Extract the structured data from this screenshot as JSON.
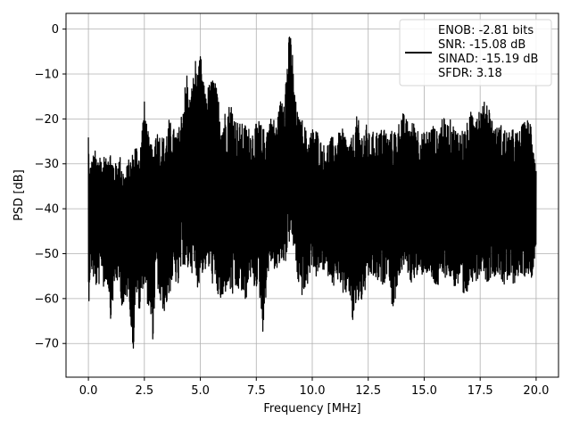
{
  "chart_data": {
    "type": "line",
    "title": "",
    "xlabel": "Frequency [MHz]",
    "ylabel": "PSD [dB]",
    "xlim": [
      -1.0,
      21.0
    ],
    "ylim": [
      -77.5,
      3.5
    ],
    "xticks": [
      0.0,
      2.5,
      5.0,
      7.5,
      10.0,
      12.5,
      15.0,
      17.5,
      20.0
    ],
    "xtick_labels": [
      "0.0",
      "2.5",
      "5.0",
      "7.5",
      "10.0",
      "12.5",
      "15.0",
      "17.5",
      "20.0"
    ],
    "yticks": [
      0,
      -10,
      -20,
      -30,
      -40,
      -50,
      -60,
      -70
    ],
    "ytick_labels": [
      "0",
      "−10",
      "−20",
      "−30",
      "−40",
      "−50",
      "−60",
      "−70"
    ],
    "grid": true,
    "legend_position": "top-right",
    "series_color": "#000000",
    "legend_entries": [
      "ENOB: -2.81 bits",
      "SNR: -15.08 dB",
      "SINAD: -15.19 dB",
      "SFDR: 3.18"
    ],
    "series": [
      {
        "name": "ENOB: -2.81 bits",
        "x": [
          0.0,
          0.05,
          0.1,
          0.2,
          0.3,
          0.4,
          0.5,
          0.6,
          0.7,
          0.8,
          0.9,
          1.0,
          1.2,
          1.4,
          1.5,
          1.6,
          1.8,
          2.0,
          2.1,
          2.3,
          2.4,
          2.5,
          2.7,
          2.9,
          3.0,
          3.2,
          3.4,
          3.6,
          3.8,
          4.0,
          4.2,
          4.4,
          4.5,
          4.6,
          4.8,
          4.9,
          5.0,
          5.2,
          5.4,
          5.6,
          5.8,
          6.0,
          6.2,
          6.4,
          6.6,
          6.8,
          7.0,
          7.2,
          7.4,
          7.6,
          7.8,
          8.0,
          8.2,
          8.4,
          8.6,
          8.8,
          8.9,
          9.0,
          9.1,
          9.2,
          9.4,
          9.6,
          9.8,
          10.0,
          10.2,
          10.4,
          10.6,
          10.8,
          11.0,
          11.2,
          11.4,
          11.6,
          11.8,
          12.0,
          12.2,
          12.4,
          12.6,
          12.8,
          13.0,
          13.2,
          13.4,
          13.6,
          13.8,
          14.0,
          14.2,
          14.4,
          14.6,
          14.8,
          15.0,
          15.2,
          15.4,
          15.6,
          15.8,
          16.0,
          16.2,
          16.4,
          16.6,
          16.8,
          17.0,
          17.2,
          17.4,
          17.6,
          17.8,
          18.0,
          18.2,
          18.4,
          18.6,
          18.8,
          19.0,
          19.2,
          19.4,
          19.6,
          19.8,
          20.0
        ],
        "upper": [
          -21,
          -33,
          -30,
          -28,
          -27,
          -29,
          -26,
          -30,
          -28,
          -29,
          -25,
          -27,
          -30,
          -28,
          -29,
          -32,
          -29,
          -27,
          -25,
          -27,
          -21,
          -16,
          -24,
          -27,
          -22,
          -23,
          -24,
          -20,
          -22,
          -23,
          -17,
          -9,
          -16,
          -13,
          -6,
          -10,
          -5,
          -14,
          -12,
          -10,
          -15,
          -19,
          -17,
          -16,
          -20,
          -21,
          -21,
          -22,
          -22,
          -20,
          -22,
          -21,
          -19,
          -21,
          -15,
          -11,
          -5,
          0,
          -3,
          -14,
          -20,
          -20,
          -24,
          -22,
          -22,
          -25,
          -26,
          -24,
          -24,
          -23,
          -22,
          -25,
          -24,
          -19,
          -23,
          -21,
          -24,
          -22,
          -23,
          -21,
          -24,
          -22,
          -22,
          -18,
          -20,
          -21,
          -20,
          -23,
          -23,
          -22,
          -21,
          -23,
          -19,
          -21,
          -20,
          -22,
          -22,
          -22,
          -20,
          -16,
          -17,
          -17,
          -15,
          -19,
          -22,
          -21,
          -22,
          -23,
          -22,
          -23,
          -21,
          -20,
          -20,
          -31
        ],
        "lower": [
          -64,
          -57,
          -53,
          -55,
          -58,
          -57,
          -57,
          -53,
          -59,
          -56,
          -58,
          -65,
          -56,
          -57,
          -62,
          -63,
          -58,
          -74,
          -58,
          -64,
          -58,
          -57,
          -63,
          -70,
          -54,
          -62,
          -63,
          -60,
          -55,
          -58,
          -52,
          -56,
          -52,
          -54,
          -56,
          -58,
          -55,
          -54,
          -54,
          -58,
          -60,
          -62,
          -57,
          -60,
          -59,
          -58,
          -62,
          -55,
          -58,
          -57,
          -68,
          -55,
          -52,
          -55,
          -52,
          -52,
          -50,
          -47,
          -48,
          -50,
          -58,
          -60,
          -57,
          -52,
          -56,
          -53,
          -55,
          -55,
          -58,
          -55,
          -62,
          -57,
          -66,
          -61,
          -61,
          -58,
          -55,
          -56,
          -57,
          -57,
          -53,
          -64,
          -57,
          -54,
          -53,
          -57,
          -55,
          -56,
          -54,
          -55,
          -57,
          -58,
          -56,
          -55,
          -56,
          -58,
          -57,
          -64,
          -57,
          -56,
          -56,
          -53,
          -57,
          -55,
          -55,
          -55,
          -58,
          -56,
          -57,
          -55,
          -56,
          -54,
          -56,
          -48
        ]
      }
    ]
  }
}
